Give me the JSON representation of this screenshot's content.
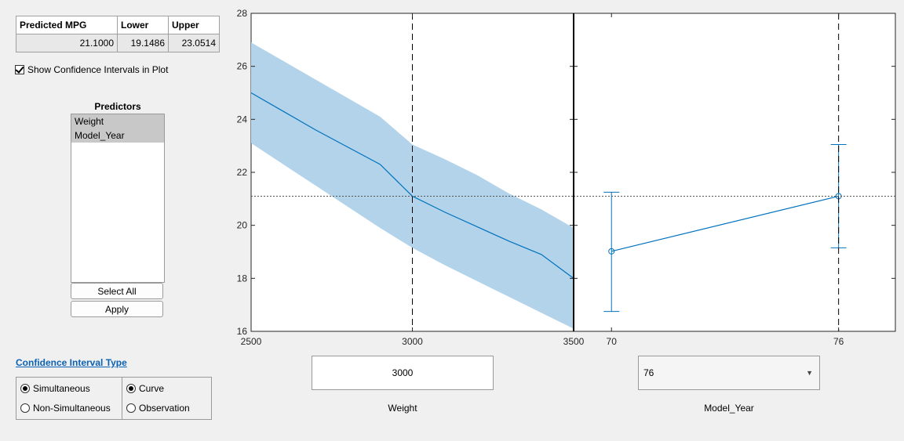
{
  "table": {
    "headers": [
      "Predicted MPG",
      "Lower",
      "Upper"
    ],
    "values": [
      "21.1000",
      "19.1486",
      "23.0514"
    ]
  },
  "ci_checkbox": {
    "label": "Show Confidence Intervals in Plot",
    "checked": true
  },
  "predictors": {
    "title": "Predictors",
    "items": [
      "Weight",
      "Model_Year"
    ],
    "select_all_label": "Select All",
    "apply_label": "Apply"
  },
  "ci_type": {
    "link": "Confidence Interval Type",
    "group1": [
      {
        "label": "Simultaneous",
        "selected": true
      },
      {
        "label": "Non-Simultaneous",
        "selected": false
      }
    ],
    "group2": [
      {
        "label": "Curve",
        "selected": true
      },
      {
        "label": "Observation",
        "selected": false
      }
    ]
  },
  "controls": {
    "weight_value": "3000",
    "weight_label": "Weight",
    "model_year_value": "76",
    "model_year_label": "Model_Year"
  },
  "colors": {
    "line": "#0072bd",
    "band": "#b2d3ea"
  },
  "chart_data": [
    {
      "type": "line",
      "xlabel": "Weight",
      "ylabel": "",
      "xlim": [
        2500,
        3500
      ],
      "ylim": [
        16,
        28
      ],
      "x_ticks": [
        2500,
        3000,
        3500
      ],
      "y_ticks": [
        16,
        18,
        20,
        22,
        24,
        26,
        28
      ],
      "x": [
        2500,
        2600,
        2700,
        2800,
        2900,
        3000,
        3100,
        3200,
        3300,
        3400,
        3500
      ],
      "y": [
        25.0,
        24.3,
        23.6,
        22.95,
        22.3,
        21.1,
        20.5,
        19.95,
        19.4,
        18.9,
        18.0
      ],
      "lower": [
        23.1,
        22.3,
        21.5,
        20.7,
        19.9,
        19.15,
        18.5,
        17.9,
        17.3,
        16.7,
        16.1
      ],
      "upper": [
        26.9,
        26.2,
        25.5,
        24.8,
        24.1,
        23.05,
        22.5,
        21.9,
        21.2,
        20.6,
        19.9
      ],
      "current_x": 3000,
      "current_y": 21.1
    },
    {
      "type": "line",
      "xlabel": "Model_Year",
      "ylabel": "",
      "xlim": [
        69,
        77.5
      ],
      "ylim": [
        16,
        28
      ],
      "x_ticks": [
        70,
        76
      ],
      "y_ticks": [
        16,
        18,
        20,
        22,
        24,
        26,
        28
      ],
      "x": [
        70,
        76
      ],
      "y": [
        19.02,
        21.1
      ],
      "lower": [
        16.75,
        19.15
      ],
      "upper": [
        21.25,
        23.05
      ],
      "current_x": 76,
      "current_y": 21.1
    }
  ]
}
